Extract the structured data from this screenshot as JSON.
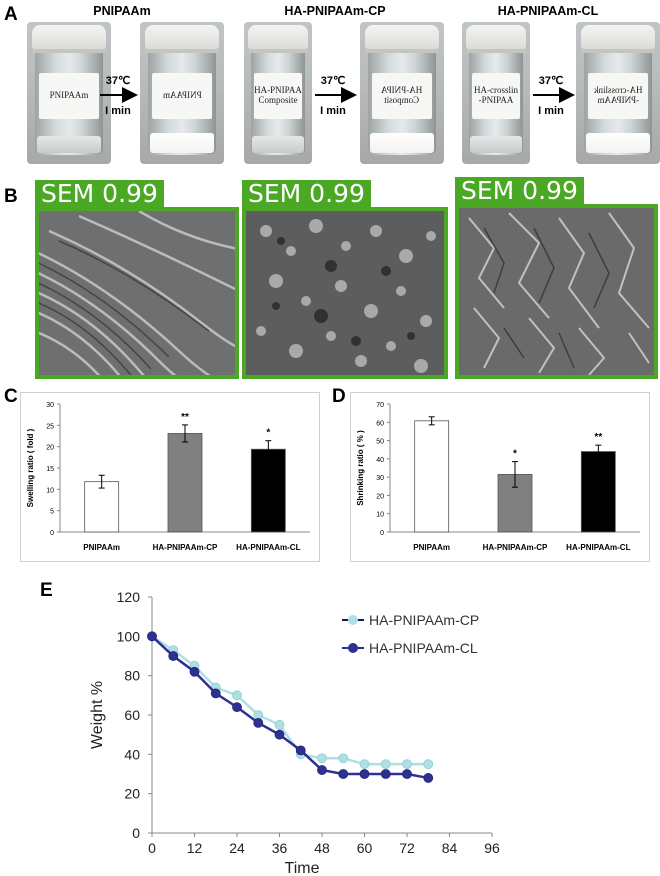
{
  "panels": {
    "a": {
      "letter": "A",
      "titles": [
        "PNIPAAm",
        "HA-PNIPAAm-CP",
        "HA-PNIPAAm-CL"
      ],
      "temp": "37℃",
      "time": "I min",
      "vial_labels": [
        "PNIPAAm",
        "PNIPAAm",
        "HA-PNIPAA\nComposite",
        "HA-PNIPA\nComposit",
        "HA-crosslin\n-PNIPAA",
        "HA-crosslink\n-PNIPAAm"
      ]
    },
    "b": {
      "letter": "B",
      "tag": "SEM 0.99"
    },
    "c": {
      "letter": "C"
    },
    "d": {
      "letter": "D"
    },
    "e": {
      "letter": "E"
    }
  },
  "colors": {
    "sem_green": "#4aa825",
    "cp_series": "#aee0e3",
    "cl_series": "#2e3192",
    "bar_cp": "#808080",
    "bar_cl": "#000000"
  },
  "chart_data": [
    {
      "type": "bar",
      "panel": "C",
      "categories": [
        "PNIPAAm",
        "HA-PNIPAAm-CP",
        "HA-PNIPAAm-CL"
      ],
      "values": [
        11.8,
        23.1,
        19.4
      ],
      "errors": [
        1.5,
        2.0,
        2.0
      ],
      "significance": [
        "",
        "**",
        "*"
      ],
      "ylabel": "Swelling ratio ( fold )",
      "ylim": [
        0,
        30
      ],
      "yticks": [
        0,
        5,
        10,
        15,
        20,
        25,
        30
      ],
      "bar_colors": [
        "#ffffff",
        "#808080",
        "#000000"
      ]
    },
    {
      "type": "bar",
      "panel": "D",
      "categories": [
        "PNIPAAm",
        "HA-PNIPAAm-CP",
        "HA-PNIPAAm-CL"
      ],
      "values": [
        60.8,
        31.5,
        44.0
      ],
      "errors": [
        2.2,
        7.0,
        3.5
      ],
      "significance": [
        "",
        "*",
        "**"
      ],
      "ylabel": "Shrinking ratio ( % )",
      "ylim": [
        0,
        70
      ],
      "yticks": [
        0,
        10,
        20,
        30,
        40,
        50,
        60,
        70
      ],
      "bar_colors": [
        "#ffffff",
        "#808080",
        "#000000"
      ]
    },
    {
      "type": "line",
      "panel": "E",
      "xlabel": "Time",
      "ylabel": "Weight %",
      "xlim": [
        0,
        96
      ],
      "ylim": [
        0,
        120
      ],
      "xticks": [
        0,
        12,
        24,
        36,
        48,
        60,
        72,
        84,
        96
      ],
      "yticks": [
        0,
        20,
        40,
        60,
        80,
        100,
        120
      ],
      "legend": "top-right",
      "series": [
        {
          "name": "HA-PNIPAAm-CP",
          "x": [
            0,
            6,
            12,
            18,
            24,
            30,
            36,
            42,
            48,
            54,
            60,
            66,
            72,
            78
          ],
          "y": [
            100,
            93,
            85,
            74,
            70,
            60,
            55,
            40,
            38,
            38,
            35,
            35,
            35,
            35
          ]
        },
        {
          "name": "HA-PNIPAAm-CL",
          "x": [
            0,
            6,
            12,
            18,
            24,
            30,
            36,
            42,
            48,
            54,
            60,
            66,
            72,
            78
          ],
          "y": [
            100,
            90,
            82,
            71,
            64,
            56,
            50,
            42,
            32,
            30,
            30,
            30,
            30,
            28
          ]
        }
      ]
    }
  ]
}
